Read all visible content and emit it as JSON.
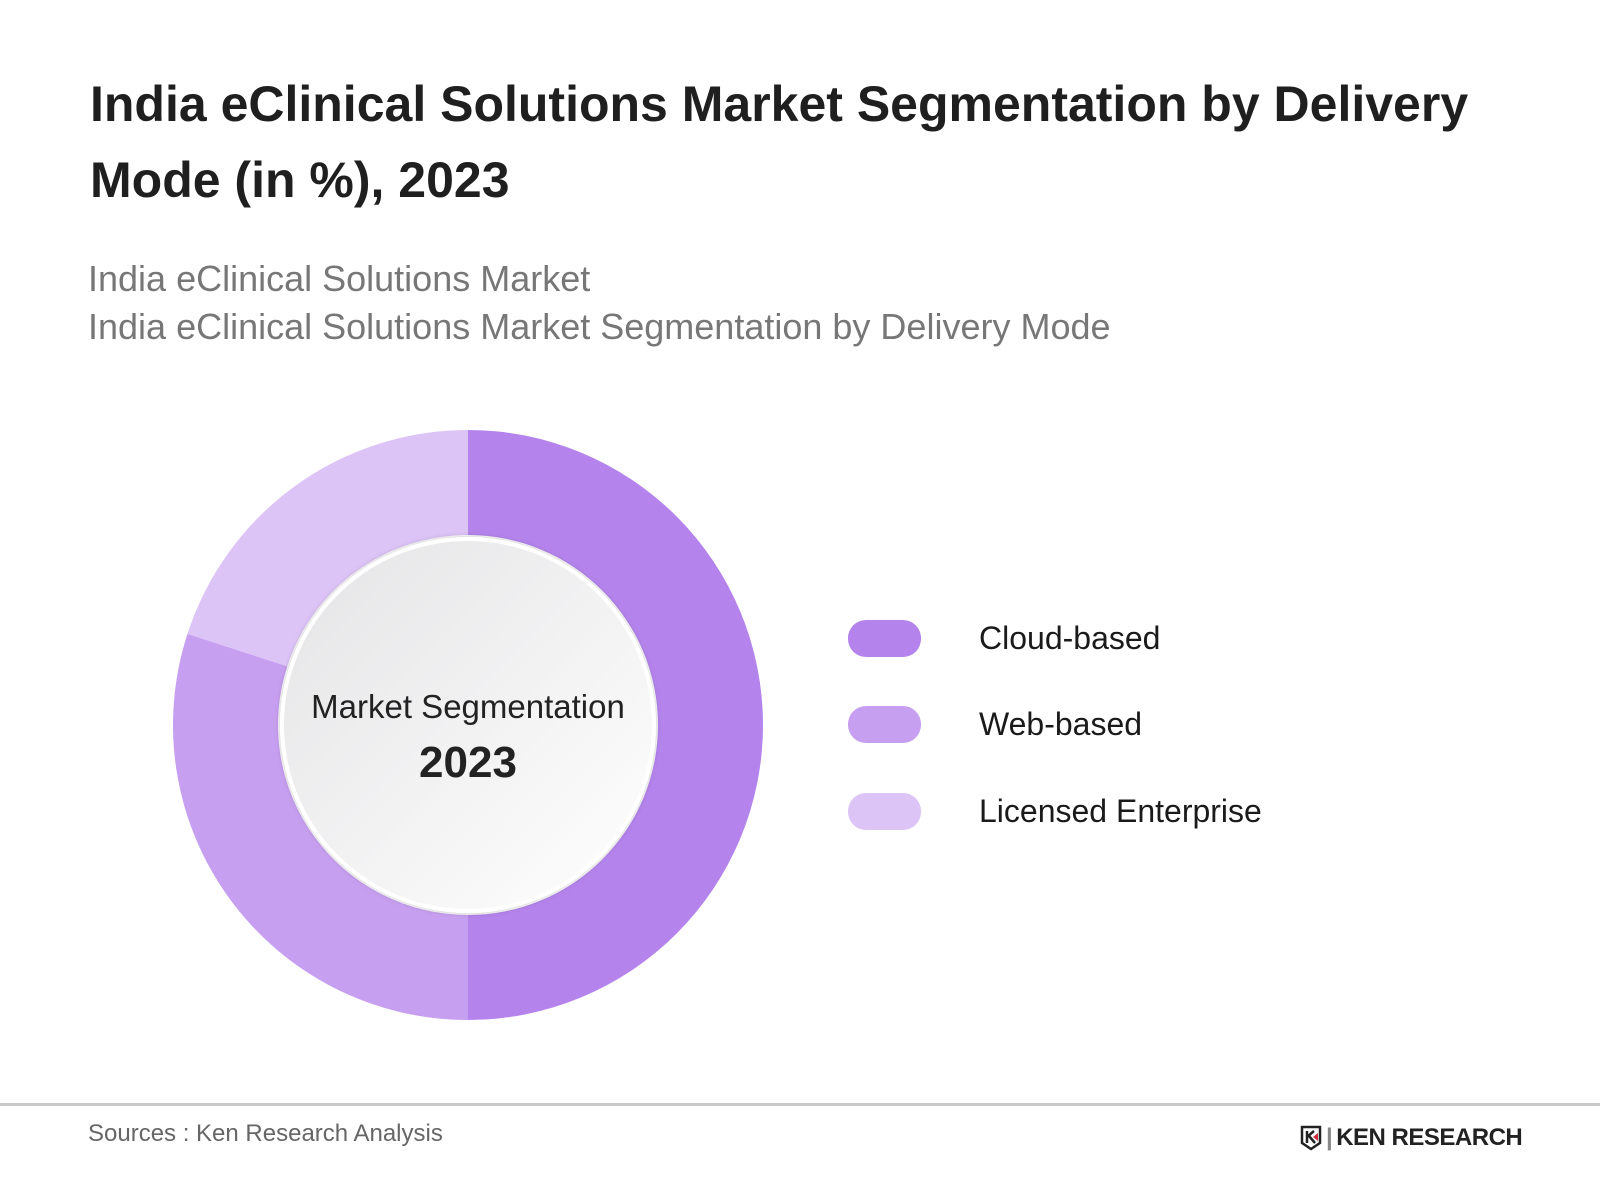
{
  "title": "India eClinical Solutions Market Segmentation by Delivery Mode (in %), 2023",
  "subtitle_1": "India eClinical Solutions Market",
  "subtitle_2": "India eClinical Solutions Market Segmentation by Delivery Mode",
  "chart_data": {
    "type": "pie",
    "variant": "donut",
    "center_label": "Market Segmentation",
    "center_value": "2023",
    "legend_position": "right",
    "categories": [
      "Cloud-based",
      "Web-based",
      "Licensed Enterprise"
    ],
    "values": [
      50,
      30,
      20
    ],
    "colors": [
      "#b484ec",
      "#c79ff0",
      "#dcc4f7"
    ]
  },
  "source": "Sources : Ken Research Analysis",
  "logo": "KEN RESEARCH"
}
